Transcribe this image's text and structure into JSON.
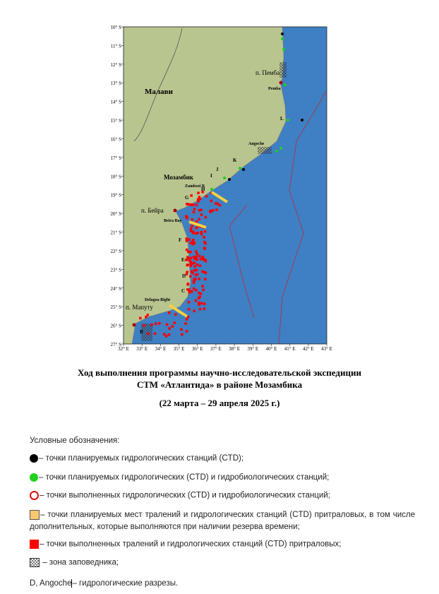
{
  "map": {
    "lat_labels": [
      "10° S",
      "11° S",
      "12° S",
      "13° S",
      "14° S",
      "15° S",
      "16° S",
      "17° S",
      "18° S",
      "19° S",
      "20° S",
      "21° S",
      "22° S",
      "23° S",
      "24° S",
      "25° S",
      "26° S",
      "27° S"
    ],
    "lon_labels": [
      "32° E",
      "33° E",
      "34° E",
      "35° E",
      "36° E",
      "37° E",
      "38° E",
      "39° E",
      "40° E",
      "41° E",
      "42° E",
      "43° E"
    ],
    "places": [
      "Малави",
      "п. Пемба",
      "Pemba",
      "Angoche",
      "Мозамбик",
      "Zambezi R",
      "п. Бейра",
      "Beira Bay",
      "Delagoa Bight",
      "п. Мапуту"
    ],
    "letters": [
      "K",
      "J",
      "I",
      "H",
      "G",
      "F",
      "E",
      "D",
      "C",
      "B",
      "L"
    ]
  },
  "caption": {
    "line1": "Ход выполнения программы научно-исследовательской экспедиции",
    "line2": "СТМ «Атлантида» в районе Мозамбика",
    "dates": "(22 марта – 29 апреля 2025 г.)"
  },
  "legend": {
    "heading": "Условные обозначения:",
    "items": [
      "– точки планируемых гидрологических станций (CTD);",
      "– точки планируемых гидрологических (CTD) и гидробиологических станций;",
      "– точки выполненных гидрологических (CTD) и гидробиологических станций;",
      "– точки планируемых мест тралений и гидрологических станций (CTD) притраловых, в том числе дополнительных, которые выполняются при наличии резерва времени;",
      "– точки выполненных тралений и гидрологических станций (CTD) притраловых;",
      "– зона заповедника;"
    ],
    "sections_name": "D, Angoche",
    "sections_text": "– гидрологические разрезы."
  }
}
